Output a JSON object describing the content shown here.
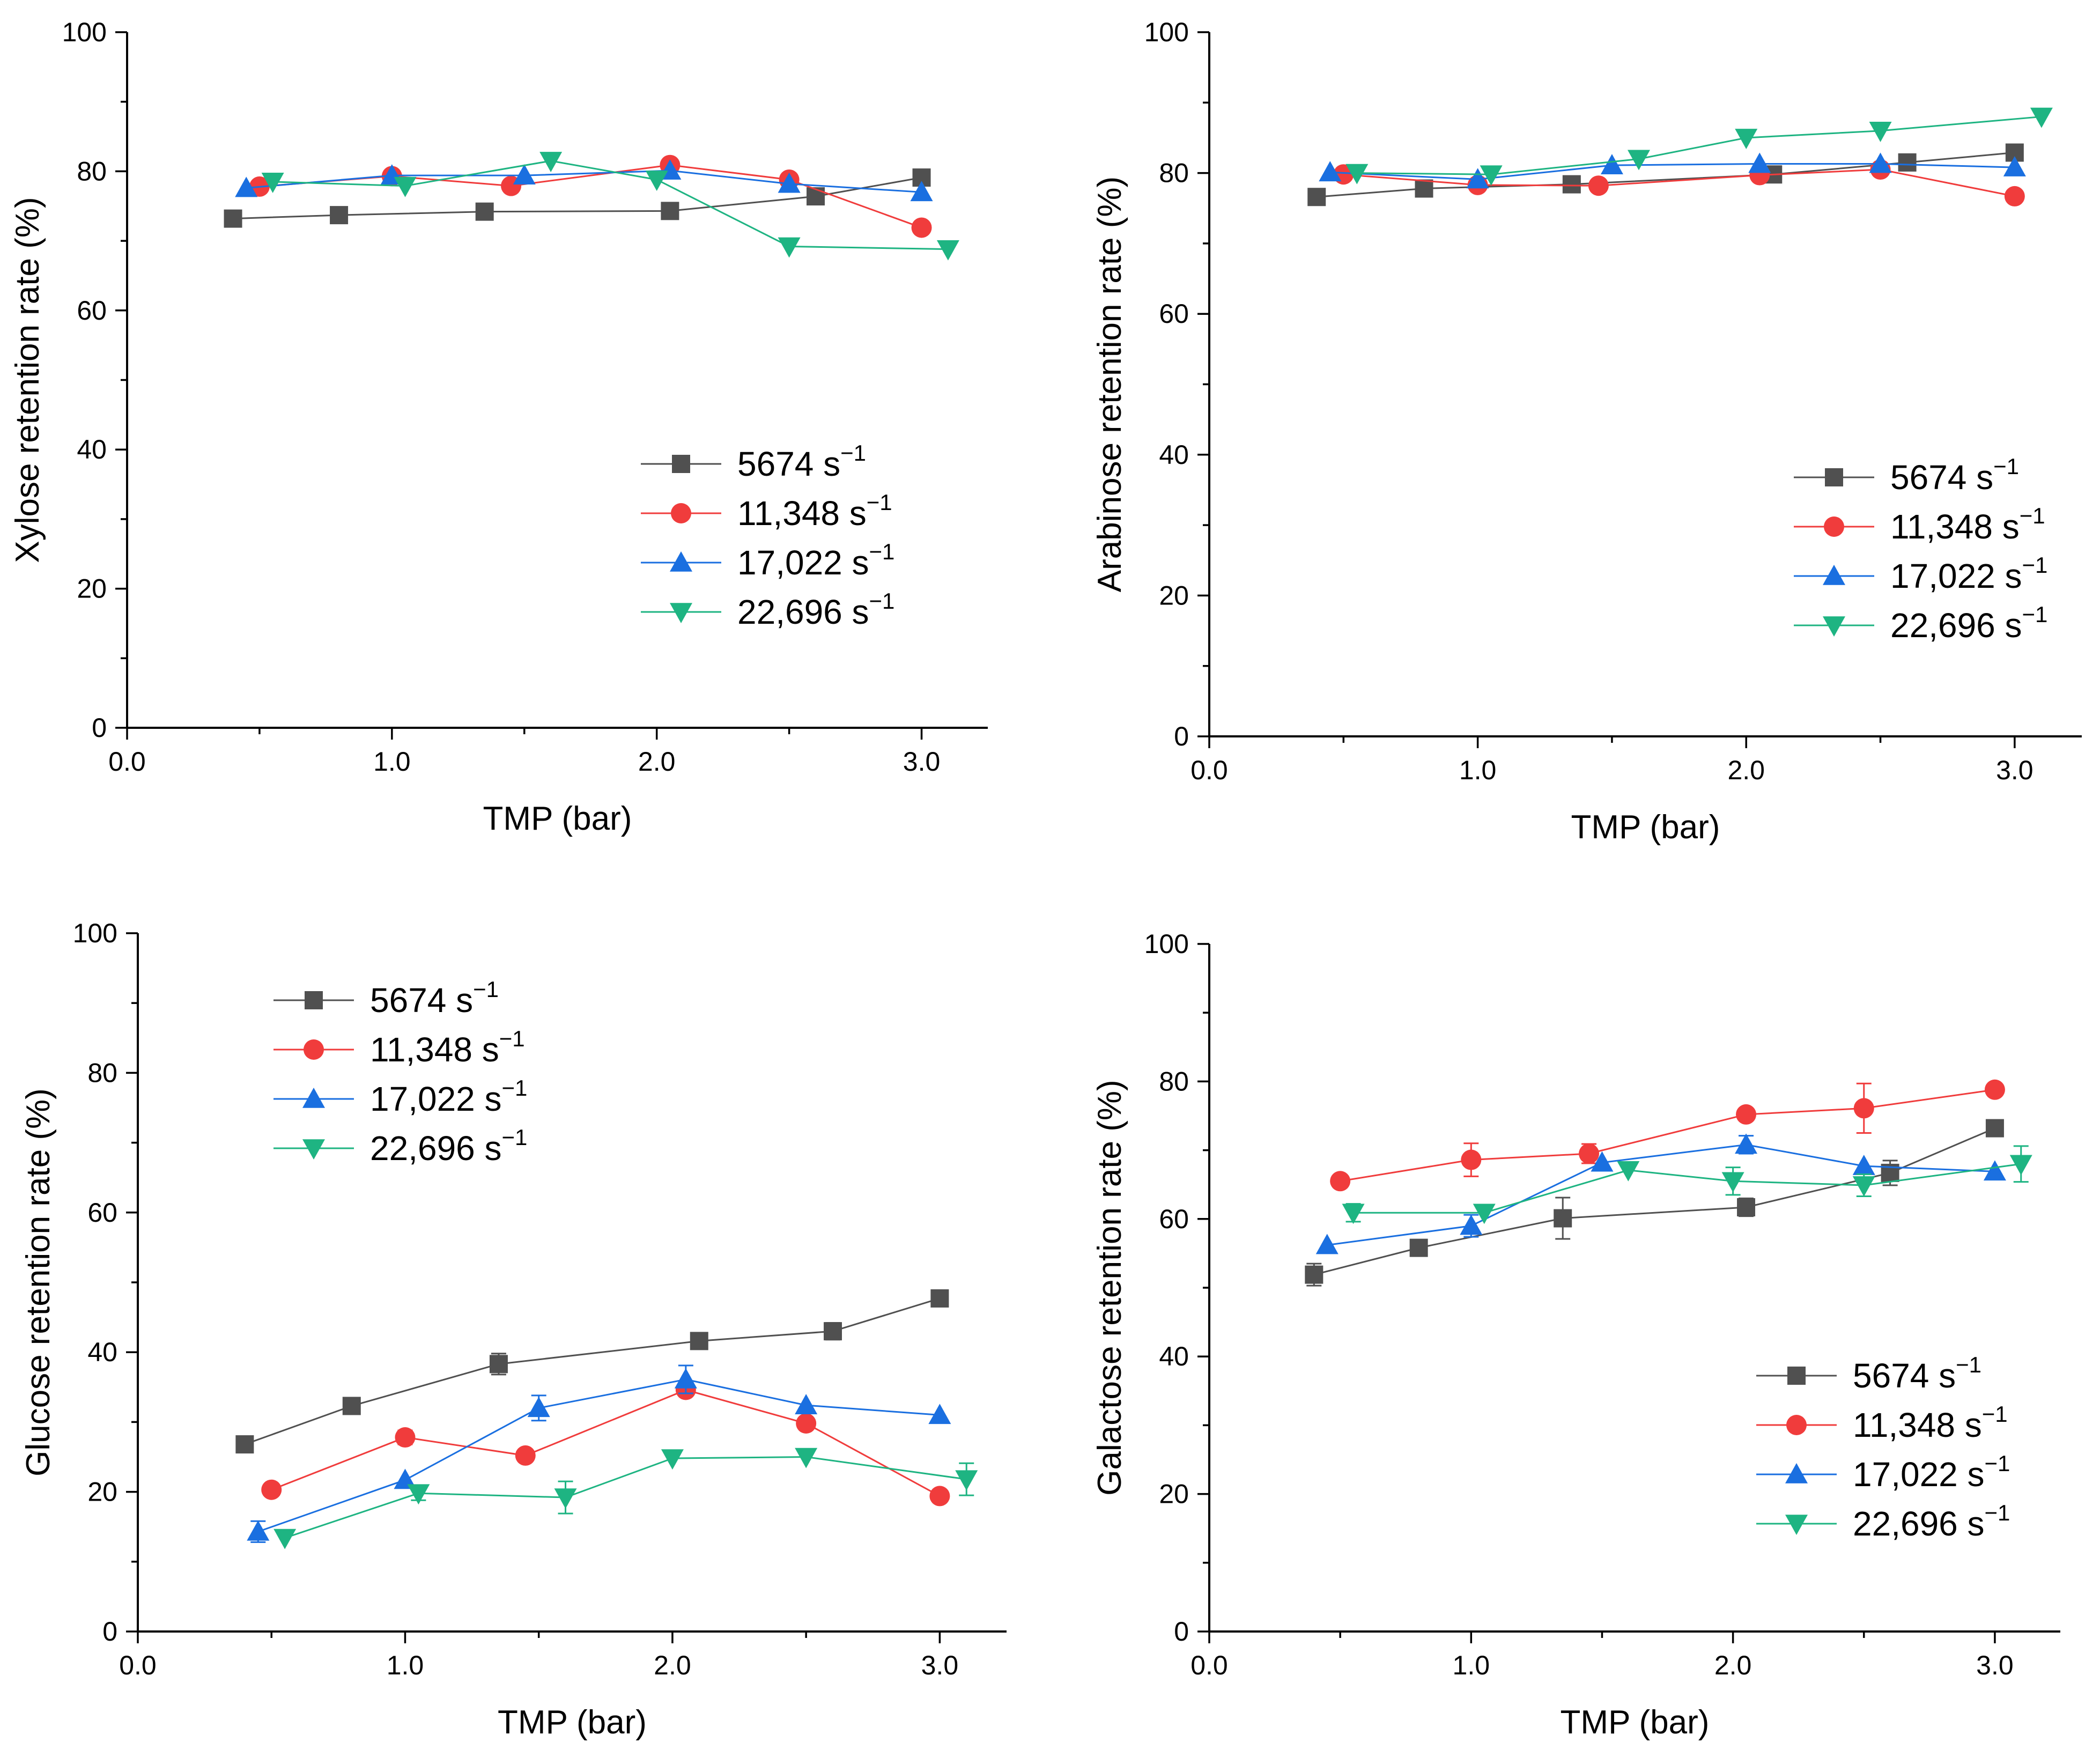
{
  "colors": {
    "s5674": "#505050",
    "s11348": "#f03c3c",
    "s17022": "#1a6fe0",
    "s22696": "#1eb482",
    "axis": "#000000"
  },
  "chart_data": [
    {
      "id": "xylose",
      "type": "line",
      "xlabel": "TMP (bar)",
      "ylabel": "Xylose retention rate (%)",
      "xlim": [
        0,
        3.25
      ],
      "ylim": [
        0,
        100
      ],
      "xticks": [
        "0.0",
        "1.0",
        "2.0",
        "3.0"
      ],
      "yticks": [
        "0",
        "20",
        "40",
        "60",
        "80",
        "100"
      ],
      "legend_position": "lower-right",
      "series": [
        {
          "name": "5674 s",
          "sup": "−1",
          "color": "#505050",
          "marker": "square",
          "x": [
            0.4,
            0.8,
            1.35,
            2.05,
            2.6,
            3.0
          ],
          "y": [
            73.2,
            73.7,
            74.2,
            74.3,
            76.4,
            79.1
          ]
        },
        {
          "name": "11,348 s",
          "sup": "−1",
          "color": "#f03c3c",
          "marker": "circle",
          "x": [
            0.5,
            1.0,
            1.45,
            2.05,
            2.5,
            3.0
          ],
          "y": [
            77.8,
            79.3,
            77.9,
            80.9,
            78.8,
            71.9
          ]
        },
        {
          "name": "17,022 s",
          "sup": "−1",
          "color": "#1a6fe0",
          "marker": "triangle-up",
          "x": [
            0.45,
            1.0,
            1.5,
            2.05,
            2.5,
            3.0
          ],
          "y": [
            77.6,
            79.4,
            79.4,
            80.1,
            78.2,
            77.0
          ]
        },
        {
          "name": "22,696 s",
          "sup": "−1",
          "color": "#1eb482",
          "marker": "triangle-down",
          "x": [
            0.55,
            1.05,
            1.6,
            2.0,
            2.5,
            3.1
          ],
          "y": [
            78.5,
            77.9,
            81.5,
            78.8,
            69.2,
            68.8
          ]
        }
      ]
    },
    {
      "id": "arabinose",
      "type": "line",
      "xlabel": "TMP (bar)",
      "ylabel": "Arabinose retention rate (%)",
      "xlim": [
        0,
        3.25
      ],
      "ylim": [
        0,
        100
      ],
      "xticks": [
        "0.0",
        "1.0",
        "2.0",
        "3.0"
      ],
      "yticks": [
        "0",
        "20",
        "40",
        "60",
        "80",
        "100"
      ],
      "legend_position": "lower-right",
      "series": [
        {
          "name": "5674 s",
          "sup": "−1",
          "color": "#505050",
          "marker": "square",
          "x": [
            0.4,
            0.8,
            1.35,
            2.1,
            2.6,
            3.0
          ],
          "y": [
            76.6,
            77.8,
            78.4,
            79.8,
            81.5,
            82.9
          ]
        },
        {
          "name": "11,348 s",
          "sup": "−1",
          "color": "#f03c3c",
          "marker": "circle",
          "x": [
            0.5,
            1.0,
            1.45,
            2.05,
            2.5,
            3.0
          ],
          "y": [
            79.8,
            78.3,
            78.2,
            79.7,
            80.5,
            76.7
          ]
        },
        {
          "name": "17,022 s",
          "sup": "−1",
          "color": "#1a6fe0",
          "marker": "triangle-up",
          "x": [
            0.45,
            1.0,
            1.5,
            2.05,
            2.5,
            3.0
          ],
          "y": [
            80.1,
            79.1,
            81.1,
            81.3,
            81.3,
            80.8
          ]
        },
        {
          "name": "22,696 s",
          "sup": "−1",
          "color": "#1eb482",
          "marker": "triangle-down",
          "x": [
            0.55,
            1.05,
            1.6,
            2.0,
            2.5,
            3.1
          ],
          "y": [
            80.0,
            79.8,
            82.0,
            85.0,
            86.0,
            88.0
          ]
        }
      ]
    },
    {
      "id": "glucose",
      "type": "line",
      "xlabel": "TMP (bar)",
      "ylabel": "Glucose retention rate (%)",
      "xlim": [
        0,
        3.25
      ],
      "ylim": [
        0,
        100
      ],
      "xticks": [
        "0.0",
        "1.0",
        "2.0",
        "3.0"
      ],
      "yticks": [
        "0",
        "20",
        "40",
        "60",
        "80",
        "100"
      ],
      "legend_position": "upper-left",
      "series": [
        {
          "name": "5674 s",
          "sup": "−1",
          "color": "#505050",
          "marker": "square",
          "x": [
            0.4,
            0.8,
            1.35,
            2.1,
            2.6,
            3.0
          ],
          "y": [
            26.8,
            32.3,
            38.3,
            41.6,
            43.0,
            47.7
          ],
          "err": [
            0,
            0,
            1.5,
            1.0,
            1.2,
            0
          ]
        },
        {
          "name": "11,348 s",
          "sup": "−1",
          "color": "#f03c3c",
          "marker": "circle",
          "x": [
            0.5,
            1.0,
            1.45,
            2.05,
            2.5,
            3.0
          ],
          "y": [
            20.3,
            27.8,
            25.2,
            34.6,
            29.8,
            19.4
          ],
          "err": [
            0,
            1.0,
            0,
            0,
            0,
            0
          ]
        },
        {
          "name": "17,022 s",
          "sup": "−1",
          "color": "#1a6fe0",
          "marker": "triangle-up",
          "x": [
            0.45,
            1.0,
            1.5,
            2.05,
            2.5,
            3.0
          ],
          "y": [
            14.3,
            21.7,
            32.0,
            36.1,
            32.4,
            31.0
          ],
          "err": [
            1.5,
            0,
            1.8,
            2.0,
            0,
            0
          ]
        },
        {
          "name": "22,696 s",
          "sup": "−1",
          "color": "#1eb482",
          "marker": "triangle-down",
          "x": [
            0.55,
            1.05,
            1.6,
            2.0,
            2.5,
            3.1
          ],
          "y": [
            13.4,
            19.8,
            19.2,
            24.8,
            25.0,
            21.8
          ],
          "err": [
            0,
            1.0,
            2.3,
            0,
            0,
            2.3
          ]
        }
      ]
    },
    {
      "id": "galactose",
      "type": "line",
      "xlabel": "TMP (bar)",
      "ylabel": "Galactose retention rate (%)",
      "xlim": [
        0,
        3.25
      ],
      "ylim": [
        0,
        100
      ],
      "xticks": [
        "0.0",
        "1.0",
        "2.0",
        "3.0"
      ],
      "yticks": [
        "0",
        "20",
        "40",
        "60",
        "80",
        "100"
      ],
      "legend_position": "lower-right",
      "series": [
        {
          "name": "5674 s",
          "sup": "−1",
          "color": "#505050",
          "marker": "square",
          "x": [
            0.4,
            0.8,
            1.35,
            2.05,
            2.6,
            3.0
          ],
          "y": [
            51.9,
            55.8,
            60.1,
            61.7,
            66.7,
            73.2
          ],
          "err": [
            1.6,
            0,
            3.0,
            1.3,
            1.8,
            0
          ]
        },
        {
          "name": "11,348 s",
          "sup": "−1",
          "color": "#f03c3c",
          "marker": "circle",
          "x": [
            0.5,
            1.0,
            1.45,
            2.05,
            2.5,
            3.0
          ],
          "y": [
            65.5,
            68.6,
            69.5,
            75.2,
            76.1,
            78.8
          ],
          "err": [
            0,
            2.4,
            1.4,
            0,
            3.6,
            0
          ]
        },
        {
          "name": "17,022 s",
          "sup": "−1",
          "color": "#1a6fe0",
          "marker": "triangle-up",
          "x": [
            0.45,
            1.0,
            1.5,
            2.05,
            2.5,
            3.0
          ],
          "y": [
            56.2,
            59.0,
            68.2,
            70.8,
            67.7,
            66.9
          ],
          "err": [
            0,
            1.6,
            0,
            1.3,
            0,
            0
          ]
        },
        {
          "name": "22,696 s",
          "sup": "−1",
          "color": "#1eb482",
          "marker": "triangle-down",
          "x": [
            0.55,
            1.05,
            1.6,
            2.0,
            2.5,
            3.1
          ],
          "y": [
            60.9,
            60.9,
            67.1,
            65.5,
            64.9,
            68.0
          ],
          "err": [
            1.3,
            0,
            0,
            2.0,
            1.6,
            2.6
          ]
        }
      ]
    }
  ]
}
